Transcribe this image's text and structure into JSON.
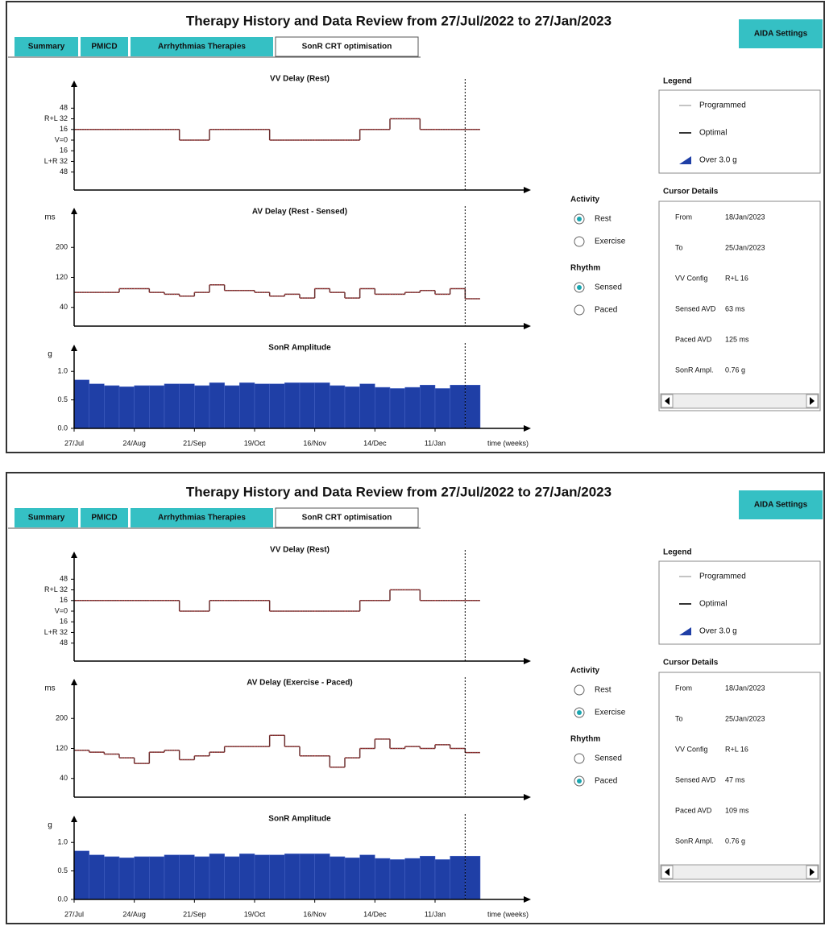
{
  "panels": [
    {
      "title": "Therapy History and Data Review from 27/Jul/2022 to 27/Jan/2023",
      "tabs": [
        "Summary",
        "PMICD",
        "Arrhythmias Therapies",
        "SonR CRT optimisation"
      ],
      "active_tab": 3,
      "button": "AIDA Settings",
      "charts": [
        {
          "type": "step",
          "title": "VV Delay (Rest)",
          "color": "#6b3030",
          "xlim": [
            0,
            30
          ],
          "ylim": [
            -75,
            75
          ],
          "yticks": [
            48,
            {
              "value": 32,
              "label": "R+L 32"
            },
            16,
            {
              "value": 0,
              "label": "V=0"
            },
            {
              "value": -16,
              "label": "16"
            },
            {
              "value": -32,
              "label": "L+R 32"
            },
            {
              "value": -48,
              "label": "48"
            }
          ],
          "cursor_x": 26,
          "x": [
            0,
            1,
            2,
            3,
            4,
            5,
            6,
            7,
            8,
            9,
            10,
            11,
            12,
            13,
            14,
            15,
            16,
            17,
            18,
            19,
            20,
            21,
            22,
            23,
            24,
            25,
            26
          ],
          "values": [
            16,
            16,
            16,
            16,
            16,
            16,
            16,
            0,
            0,
            16,
            16,
            16,
            16,
            0,
            0,
            0,
            0,
            0,
            0,
            16,
            16,
            32,
            32,
            16,
            16,
            16,
            16
          ]
        },
        {
          "type": "step",
          "title": "AV Delay (Rest - Sensed)",
          "y_unit": "ms",
          "color": "#6b3030",
          "xlim": [
            0,
            30
          ],
          "ylim": [
            -10,
            280
          ],
          "yticks": [
            40,
            120,
            200
          ],
          "cursor_x": 26,
          "x": [
            0,
            1,
            2,
            3,
            4,
            5,
            6,
            7,
            8,
            9,
            10,
            11,
            12,
            13,
            14,
            15,
            16,
            17,
            18,
            19,
            20,
            21,
            22,
            23,
            24,
            25,
            26
          ],
          "values": [
            80,
            80,
            80,
            90,
            90,
            80,
            75,
            70,
            80,
            100,
            85,
            85,
            80,
            70,
            75,
            65,
            90,
            80,
            65,
            90,
            75,
            75,
            80,
            85,
            75,
            90,
            63
          ]
        },
        {
          "type": "bar",
          "title": "SonR Amplitude",
          "y_unit": "g",
          "color": "#1f3fa6",
          "xlim": [
            0,
            30
          ],
          "ylim": [
            0,
            1.3
          ],
          "yticks": [
            {
              "value": 0,
              "label": "0.0"
            },
            {
              "value": 0.5,
              "label": "0.5"
            },
            {
              "value": 1,
              "label": "1.0"
            }
          ],
          "xticks": [
            {
              "value": 0,
              "label": "27/Jul"
            },
            {
              "value": 4,
              "label": "24/Aug"
            },
            {
              "value": 8,
              "label": "21/Sep"
            },
            {
              "value": 12,
              "label": "19/Oct"
            },
            {
              "value": 16,
              "label": "16/Nov"
            },
            {
              "value": 20,
              "label": "14/Dec"
            },
            {
              "value": 24,
              "label": "11/Jan"
            }
          ],
          "xlabel": "time (weeks)",
          "cursor_x": 26,
          "x": [
            0,
            1,
            2,
            3,
            4,
            5,
            6,
            7,
            8,
            9,
            10,
            11,
            12,
            13,
            14,
            15,
            16,
            17,
            18,
            19,
            20,
            21,
            22,
            23,
            24,
            25,
            26
          ],
          "values": [
            0.85,
            0.78,
            0.75,
            0.73,
            0.75,
            0.75,
            0.78,
            0.78,
            0.75,
            0.8,
            0.75,
            0.8,
            0.78,
            0.78,
            0.8,
            0.8,
            0.8,
            0.75,
            0.73,
            0.78,
            0.72,
            0.7,
            0.72,
            0.76,
            0.7,
            0.76,
            0.76
          ]
        }
      ],
      "activity": {
        "label": "Activity",
        "options": [
          "Rest",
          "Exercise"
        ],
        "selected": 0
      },
      "rhythm": {
        "label": "Rhythm",
        "options": [
          "Sensed",
          "Paced"
        ],
        "selected": 0
      },
      "legend": {
        "title": "Legend",
        "items": [
          "Programmed",
          "Optimal",
          "Over 3.0 g"
        ]
      },
      "cursor_details": {
        "title": "Cursor Details",
        "rows": [
          [
            "From",
            "18/Jan/2023"
          ],
          [
            "To",
            "25/Jan/2023"
          ],
          [
            "VV Config",
            "R+L 16"
          ],
          [
            "Sensed AVD",
            "63 ms"
          ],
          [
            "Paced AVD",
            "125 ms"
          ],
          [
            "SonR Ampl.",
            "0.76 g"
          ]
        ]
      }
    },
    {
      "title": "Therapy History and Data Review from 27/Jul/2022 to 27/Jan/2023",
      "tabs": [
        "Summary",
        "PMICD",
        "Arrhythmias Therapies",
        "SonR CRT optimisation"
      ],
      "active_tab": 3,
      "button": "AIDA Settings",
      "charts": [
        {
          "type": "step",
          "title": "VV Delay (Rest)",
          "color": "#6b3030",
          "xlim": [
            0,
            30
          ],
          "ylim": [
            -75,
            75
          ],
          "yticks": [
            48,
            {
              "value": 32,
              "label": "R+L 32"
            },
            16,
            {
              "value": 0,
              "label": "V=0"
            },
            {
              "value": -16,
              "label": "16"
            },
            {
              "value": -32,
              "label": "L+R 32"
            },
            {
              "value": -48,
              "label": "48"
            }
          ],
          "cursor_x": 26,
          "x": [
            0,
            1,
            2,
            3,
            4,
            5,
            6,
            7,
            8,
            9,
            10,
            11,
            12,
            13,
            14,
            15,
            16,
            17,
            18,
            19,
            20,
            21,
            22,
            23,
            24,
            25,
            26
          ],
          "values": [
            16,
            16,
            16,
            16,
            16,
            16,
            16,
            0,
            0,
            16,
            16,
            16,
            16,
            0,
            0,
            0,
            0,
            0,
            0,
            16,
            16,
            32,
            32,
            16,
            16,
            16,
            16
          ]
        },
        {
          "type": "step",
          "title": "AV Delay (Exercise - Paced)",
          "y_unit": "ms",
          "color": "#6b3030",
          "xlim": [
            0,
            30
          ],
          "ylim": [
            -10,
            280
          ],
          "yticks": [
            40,
            120,
            200
          ],
          "cursor_x": 26,
          "x": [
            0,
            1,
            2,
            3,
            4,
            5,
            6,
            7,
            8,
            9,
            10,
            11,
            12,
            13,
            14,
            15,
            16,
            17,
            18,
            19,
            20,
            21,
            22,
            23,
            24,
            25,
            26
          ],
          "values": [
            115,
            110,
            105,
            95,
            80,
            110,
            115,
            90,
            100,
            110,
            125,
            125,
            125,
            155,
            125,
            100,
            100,
            70,
            95,
            120,
            145,
            120,
            125,
            120,
            130,
            120,
            109
          ]
        },
        {
          "type": "bar",
          "title": "SonR Amplitude",
          "y_unit": "g",
          "color": "#1f3fa6",
          "xlim": [
            0,
            30
          ],
          "ylim": [
            0,
            1.3
          ],
          "yticks": [
            {
              "value": 0,
              "label": "0.0"
            },
            {
              "value": 0.5,
              "label": "0.5"
            },
            {
              "value": 1,
              "label": "1.0"
            }
          ],
          "xticks": [
            {
              "value": 0,
              "label": "27/Jul"
            },
            {
              "value": 4,
              "label": "24/Aug"
            },
            {
              "value": 8,
              "label": "21/Sep"
            },
            {
              "value": 12,
              "label": "19/Oct"
            },
            {
              "value": 16,
              "label": "16/Nov"
            },
            {
              "value": 20,
              "label": "14/Dec"
            },
            {
              "value": 24,
              "label": "11/Jan"
            }
          ],
          "xlabel": "time (weeks)",
          "cursor_x": 26,
          "x": [
            0,
            1,
            2,
            3,
            4,
            5,
            6,
            7,
            8,
            9,
            10,
            11,
            12,
            13,
            14,
            15,
            16,
            17,
            18,
            19,
            20,
            21,
            22,
            23,
            24,
            25,
            26
          ],
          "values": [
            0.85,
            0.78,
            0.75,
            0.73,
            0.75,
            0.75,
            0.78,
            0.78,
            0.75,
            0.8,
            0.75,
            0.8,
            0.78,
            0.78,
            0.8,
            0.8,
            0.8,
            0.75,
            0.73,
            0.78,
            0.72,
            0.7,
            0.72,
            0.76,
            0.7,
            0.76,
            0.76
          ]
        }
      ],
      "activity": {
        "label": "Activity",
        "options": [
          "Rest",
          "Exercise"
        ],
        "selected": 1
      },
      "rhythm": {
        "label": "Rhythm",
        "options": [
          "Sensed",
          "Paced"
        ],
        "selected": 1
      },
      "legend": {
        "title": "Legend",
        "items": [
          "Programmed",
          "Optimal",
          "Over 3.0 g"
        ]
      },
      "cursor_details": {
        "title": "Cursor Details",
        "rows": [
          [
            "From",
            "18/Jan/2023"
          ],
          [
            "To",
            "25/Jan/2023"
          ],
          [
            "VV Config",
            "R+L 16"
          ],
          [
            "Sensed AVD",
            "47 ms"
          ],
          [
            "Paced AVD",
            "109 ms"
          ],
          [
            "SonR Ampl.",
            "0.76 g"
          ]
        ]
      }
    }
  ]
}
